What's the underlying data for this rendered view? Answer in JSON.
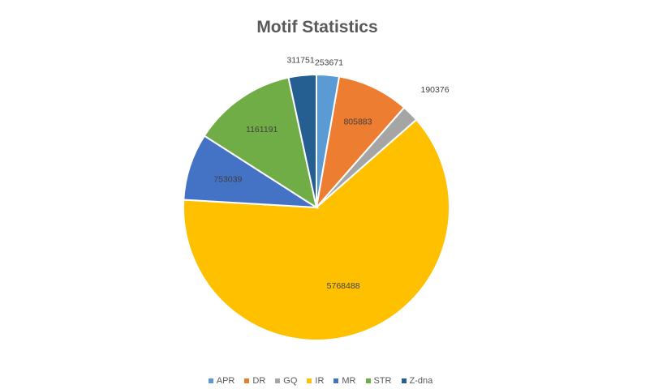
{
  "chart_data": {
    "type": "pie",
    "title": "Motif Statistics",
    "categories": [
      "APR",
      "DR",
      "GQ",
      "IR",
      "MR",
      "STR",
      "Z-dna"
    ],
    "values": [
      253671,
      805883,
      190376,
      5768488,
      753039,
      1161191,
      311751
    ],
    "colors": [
      "#5B9BD5",
      "#ED7D31",
      "#A5A5A5",
      "#FFC000",
      "#4472C4",
      "#70AD47",
      "#255E91"
    ],
    "legend_position": "bottom",
    "data_labels": [
      "253671",
      "805883",
      "190376",
      "5768488",
      "753039",
      "1161191",
      "311751"
    ]
  }
}
